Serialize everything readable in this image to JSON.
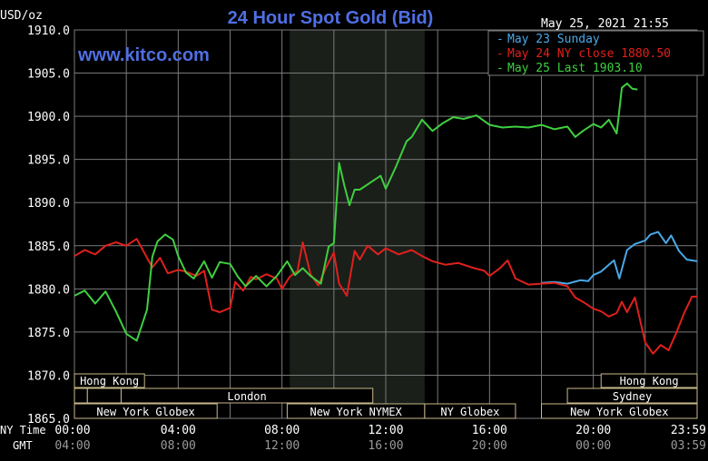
{
  "header": {
    "title": "24 Hour Spot Gold (Bid)",
    "units": "USD/oz",
    "timestamp": "May 25, 2021 21:55",
    "watermark": "www.kitco.com"
  },
  "colors": {
    "background": "#000000",
    "grid": "#7a7a7a",
    "axis_text": "#ffffff",
    "title": "#4f6fe3",
    "watermark": "#4f6fe3",
    "session_bg": "#000000",
    "session_border": "#c8b98a",
    "session_text": "#ffffff",
    "highlight_band": "#1a1f1a",
    "may23": "#4aa8e8",
    "may24": "#e0201c",
    "may25": "#3fcf3f"
  },
  "session_rows": {
    "asia": [
      {
        "label": "Hong Kong",
        "start": 0,
        "end": 2.7
      },
      {
        "label": "Hong Kong",
        "start": 20.3,
        "end": 24
      }
    ],
    "europe": [
      {
        "label": "",
        "start": 0,
        "end": 0.5
      },
      {
        "label": "",
        "start": 0.5,
        "end": 1.8
      },
      {
        "label": "London",
        "start": 1.8,
        "end": 11.5
      },
      {
        "label": "Sydney",
        "start": 19.0,
        "end": 24
      }
    ],
    "america": [
      {
        "label": "New York Globex",
        "start": 0,
        "end": 5.5
      },
      {
        "label": "New York NYMEX",
        "start": 8.2,
        "end": 13.5
      },
      {
        "label": "NY Globex",
        "start": 13.5,
        "end": 17.0
      },
      {
        "label": "New York Globex",
        "start": 18.0,
        "end": 24
      }
    ]
  },
  "chart_data": {
    "type": "line",
    "title": "24 Hour Spot Gold (Bid)",
    "ylabel": "USD/oz",
    "ylim": [
      1865,
      1910
    ],
    "yticks": [
      "1910.0",
      "1905.0",
      "1900.0",
      "1895.0",
      "1890.0",
      "1885.0",
      "1880.0",
      "1875.0",
      "1870.0",
      "1865.0"
    ],
    "xlim": [
      0,
      24
    ],
    "x_row_labels": [
      "NY Time",
      "GMT"
    ],
    "xticks_ny": [
      "00:00",
      "04:00",
      "08:00",
      "12:00",
      "16:00",
      "20:00",
      "23:59"
    ],
    "xticks_gmt": [
      "04:00",
      "08:00",
      "12:00",
      "16:00",
      "20:00",
      "00:00",
      "03:59"
    ],
    "legend_position": "top-right",
    "highlight_band": [
      8.3,
      13.5
    ],
    "grid": true,
    "series": [
      {
        "name": "May 23 Sunday",
        "color": "#4aa8e8",
        "x": [
          18.0,
          18.5,
          19.0,
          19.5,
          19.8,
          20.0,
          20.3,
          20.6,
          20.8,
          21.0,
          21.3,
          21.6,
          22.0,
          22.2,
          22.5,
          22.8,
          23.0,
          23.3,
          23.6,
          24.0
        ],
        "y": [
          1880.7,
          1880.8,
          1880.6,
          1881.0,
          1880.9,
          1881.6,
          1882.0,
          1882.8,
          1883.3,
          1881.2,
          1884.5,
          1885.2,
          1885.6,
          1886.3,
          1886.6,
          1885.3,
          1886.2,
          1884.4,
          1883.4,
          1883.2
        ]
      },
      {
        "name": "May 24 NY close 1880.50",
        "color": "#e0201c",
        "x": [
          0.0,
          0.4,
          0.8,
          1.2,
          1.6,
          2.0,
          2.4,
          2.8,
          3.0,
          3.3,
          3.6,
          4.0,
          4.3,
          4.7,
          5.0,
          5.3,
          5.6,
          6.0,
          6.2,
          6.5,
          6.8,
          7.0,
          7.4,
          7.8,
          8.0,
          8.3,
          8.6,
          8.8,
          9.1,
          9.4,
          9.7,
          10.0,
          10.2,
          10.5,
          10.8,
          11.0,
          11.3,
          11.7,
          12.0,
          12.5,
          13.0,
          13.4,
          13.8,
          14.3,
          14.8,
          15.3,
          15.8,
          16.0,
          16.4,
          16.7,
          17.0,
          17.5,
          18.0,
          18.5,
          19.0,
          19.3,
          19.6,
          20.0,
          20.3,
          20.6,
          20.9,
          21.1,
          21.3,
          21.6,
          22.0,
          22.3,
          22.6,
          22.9,
          23.2,
          23.5,
          23.8,
          24.0
        ],
        "y": [
          1883.8,
          1884.5,
          1884.0,
          1885.0,
          1885.4,
          1885.0,
          1885.8,
          1883.6,
          1882.5,
          1883.6,
          1881.8,
          1882.2,
          1882.0,
          1881.5,
          1882.1,
          1877.6,
          1877.3,
          1877.8,
          1880.8,
          1879.8,
          1881.4,
          1881.1,
          1881.7,
          1881.2,
          1880.0,
          1881.4,
          1882.1,
          1885.4,
          1881.7,
          1880.4,
          1882.5,
          1884.2,
          1880.6,
          1879.2,
          1884.4,
          1883.4,
          1885.0,
          1884.0,
          1884.7,
          1884.0,
          1884.5,
          1883.8,
          1883.2,
          1882.8,
          1883.0,
          1882.5,
          1882.1,
          1881.5,
          1882.4,
          1883.3,
          1881.2,
          1880.5,
          1880.6,
          1880.7,
          1880.3,
          1879.0,
          1878.5,
          1877.7,
          1877.4,
          1876.8,
          1877.2,
          1878.5,
          1877.3,
          1879.0,
          1873.8,
          1872.5,
          1873.5,
          1872.9,
          1874.9,
          1877.2,
          1879.1,
          1879.1
        ]
      },
      {
        "name": "May 25 Last 1903.10",
        "color": "#3fcf3f",
        "x": [
          0.0,
          0.4,
          0.8,
          1.2,
          1.6,
          2.0,
          2.4,
          2.8,
          3.0,
          3.2,
          3.5,
          3.8,
          4.0,
          4.3,
          4.6,
          5.0,
          5.3,
          5.6,
          6.0,
          6.3,
          6.6,
          7.0,
          7.4,
          7.8,
          8.2,
          8.5,
          8.8,
          9.1,
          9.5,
          9.8,
          10.0,
          10.2,
          10.4,
          10.6,
          10.8,
          11.0,
          11.4,
          11.8,
          12.0,
          12.4,
          12.8,
          13.0,
          13.4,
          13.8,
          14.2,
          14.6,
          15.0,
          15.5,
          16.0,
          16.5,
          17.0,
          17.5,
          18.0,
          18.5,
          19.0,
          19.3,
          19.6,
          20.0,
          20.3,
          20.6,
          20.9,
          21.1,
          21.3,
          21.5,
          21.7
        ],
        "y": [
          1879.2,
          1879.8,
          1878.3,
          1879.7,
          1877.4,
          1874.8,
          1874.0,
          1877.6,
          1883.7,
          1885.5,
          1886.3,
          1885.7,
          1883.8,
          1881.9,
          1881.2,
          1883.2,
          1881.3,
          1883.1,
          1882.9,
          1881.4,
          1880.3,
          1881.5,
          1880.3,
          1881.5,
          1883.2,
          1881.6,
          1882.4,
          1881.5,
          1880.6,
          1884.9,
          1885.3,
          1894.6,
          1892.0,
          1889.7,
          1891.5,
          1891.5,
          1892.3,
          1893.1,
          1891.6,
          1894.2,
          1897.1,
          1897.6,
          1899.6,
          1898.3,
          1899.2,
          1899.9,
          1899.7,
          1900.1,
          1899.0,
          1898.7,
          1898.8,
          1898.7,
          1899.0,
          1898.5,
          1898.8,
          1897.6,
          1898.3,
          1899.1,
          1898.7,
          1899.6,
          1898.0,
          1903.3,
          1903.8,
          1903.2,
          1903.1
        ]
      }
    ]
  }
}
